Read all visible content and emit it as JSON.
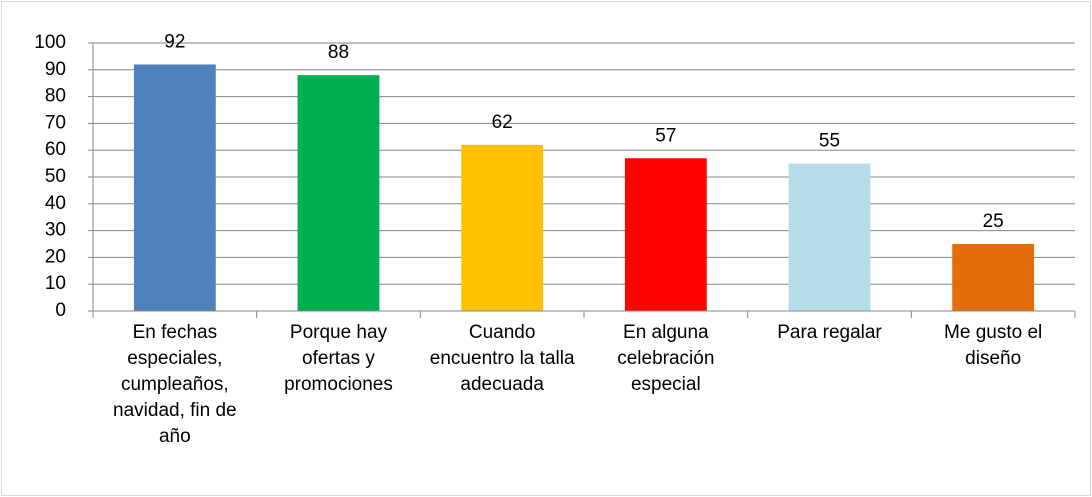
{
  "chart_data": {
    "type": "bar",
    "categories": [
      "En fechas especiales, cumpleaños, navidad, fin de año",
      "Porque hay ofertas y promociones",
      "Cuando encuentro la talla adecuada",
      "En alguna celebración especial",
      "Para regalar",
      "Me gusto el diseño"
    ],
    "values": [
      92,
      88,
      62,
      57,
      55,
      25
    ],
    "colors": [
      "#4f81bd",
      "#00b050",
      "#ffc000",
      "#ff0000",
      "#b7dde8",
      "#e46c0a"
    ],
    "ylim": [
      0,
      100
    ],
    "yticks": [
      0,
      10,
      20,
      30,
      40,
      50,
      60,
      70,
      80,
      90,
      100
    ],
    "grid": true
  }
}
